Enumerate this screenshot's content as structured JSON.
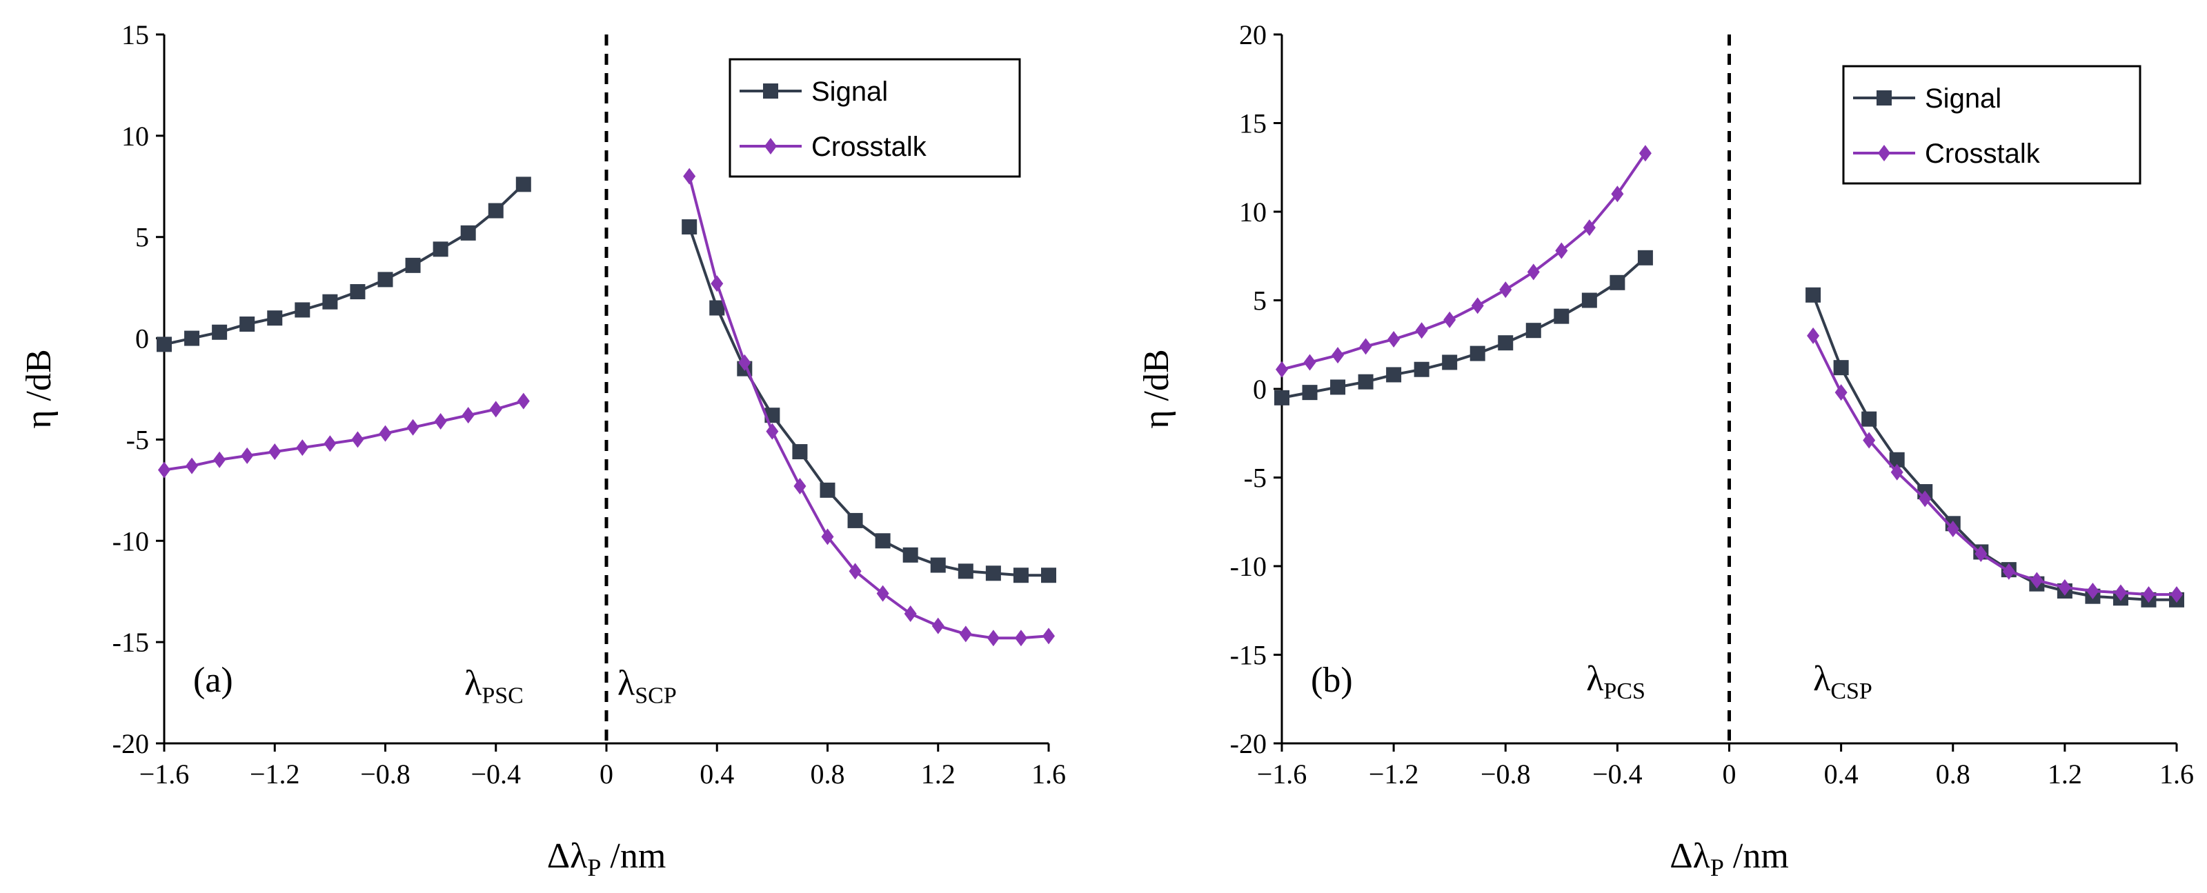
{
  "colors": {
    "signal": "#333d4d",
    "crosstalk": "#8a35b5",
    "axis": "#000000"
  },
  "chart_data": [
    {
      "type": "line",
      "panel_label": "(a)",
      "xlabel": "Δλ",
      "xlabel_sub": "P",
      "xlabel_unit": " /nm",
      "ylabel": "η /dB",
      "xlim": [
        -1.6,
        1.6
      ],
      "ylim": [
        -20,
        15
      ],
      "xticks": [
        -1.6,
        -1.2,
        -0.8,
        -0.4,
        0,
        0.4,
        0.8,
        1.2,
        1.6
      ],
      "xtick_labels": [
        "−1.6",
        "−1.2",
        "−0.8",
        "−0.4",
        "0",
        "0.4",
        "0.8",
        "1.2",
        "1.6"
      ],
      "yticks": [
        -20,
        -15,
        -10,
        -5,
        0,
        5,
        10,
        15
      ],
      "ytick_labels": [
        "-20",
        "-15",
        "-10",
        "-5",
        "0",
        "5",
        "10",
        "15"
      ],
      "divider_x": 0,
      "region_labels": [
        {
          "main": "λ",
          "sub": "PSC",
          "x": -0.3,
          "y": -17.6,
          "anchor": "end"
        },
        {
          "main": "λ",
          "sub": "SCP",
          "x": 0.04,
          "y": -17.6,
          "anchor": "start"
        }
      ],
      "legend": [
        "Signal",
        "Crosstalk"
      ],
      "series": [
        {
          "name": "Signal",
          "marker": "square",
          "segments": [
            {
              "x": [
                -1.6,
                -1.5,
                -1.4,
                -1.3,
                -1.2,
                -1.1,
                -1.0,
                -0.9,
                -0.8,
                -0.7,
                -0.6,
                -0.5,
                -0.4,
                -0.3
              ],
              "y": [
                -0.3,
                0.0,
                0.3,
                0.7,
                1.0,
                1.4,
                1.8,
                2.3,
                2.9,
                3.6,
                4.4,
                5.2,
                6.3,
                7.6
              ]
            },
            {
              "x": [
                0.3,
                0.4,
                0.5,
                0.6,
                0.7,
                0.8,
                0.9,
                1.0,
                1.1,
                1.2,
                1.3,
                1.4,
                1.5,
                1.6
              ],
              "y": [
                5.5,
                1.5,
                -1.5,
                -3.8,
                -5.6,
                -7.5,
                -9.0,
                -10.0,
                -10.7,
                -11.2,
                -11.5,
                -11.6,
                -11.7,
                -11.7
              ]
            }
          ]
        },
        {
          "name": "Crosstalk",
          "marker": "diamond",
          "segments": [
            {
              "x": [
                -1.6,
                -1.5,
                -1.4,
                -1.3,
                -1.2,
                -1.1,
                -1.0,
                -0.9,
                -0.8,
                -0.7,
                -0.6,
                -0.5,
                -0.4,
                -0.3
              ],
              "y": [
                -6.5,
                -6.3,
                -6.0,
                -5.8,
                -5.6,
                -5.4,
                -5.2,
                -5.0,
                -4.7,
                -4.4,
                -4.1,
                -3.8,
                -3.5,
                -3.1
              ]
            },
            {
              "x": [
                0.3,
                0.4,
                0.5,
                0.6,
                0.7,
                0.8,
                0.9,
                1.0,
                1.1,
                1.2,
                1.3,
                1.4,
                1.5,
                1.6
              ],
              "y": [
                8.0,
                2.7,
                -1.2,
                -4.6,
                -7.3,
                -9.8,
                -11.5,
                -12.6,
                -13.6,
                -14.2,
                -14.6,
                -14.8,
                -14.8,
                -14.7
              ]
            }
          ]
        }
      ]
    },
    {
      "type": "line",
      "panel_label": "(b)",
      "xlabel": "Δλ",
      "xlabel_sub": "P",
      "xlabel_unit": " /nm",
      "ylabel": "η /dB",
      "xlim": [
        -1.6,
        1.6
      ],
      "ylim": [
        -20,
        20
      ],
      "xticks": [
        -1.6,
        -1.2,
        -0.8,
        -0.4,
        0,
        0.4,
        0.8,
        1.2,
        1.6
      ],
      "xtick_labels": [
        "−1.6",
        "−1.2",
        "−0.8",
        "−0.4",
        "0",
        "0.4",
        "0.8",
        "1.2",
        "1.6"
      ],
      "yticks": [
        -20,
        -15,
        -10,
        -5,
        0,
        5,
        10,
        15,
        20
      ],
      "ytick_labels": [
        "-20",
        "-15",
        "-10",
        "-5",
        "0",
        "5",
        "10",
        "15",
        "20"
      ],
      "divider_x": 0,
      "region_labels": [
        {
          "main": "λ",
          "sub": "PCS",
          "x": -0.3,
          "y": -17.0,
          "anchor": "end"
        },
        {
          "main": "λ",
          "sub": "CSP",
          "x": 0.3,
          "y": -17.0,
          "anchor": "start"
        }
      ],
      "legend": [
        "Signal",
        "Crosstalk"
      ],
      "series": [
        {
          "name": "Signal",
          "marker": "square",
          "segments": [
            {
              "x": [
                -1.6,
                -1.5,
                -1.4,
                -1.3,
                -1.2,
                -1.1,
                -1.0,
                -0.9,
                -0.8,
                -0.7,
                -0.6,
                -0.5,
                -0.4,
                -0.3
              ],
              "y": [
                -0.5,
                -0.2,
                0.1,
                0.4,
                0.8,
                1.1,
                1.5,
                2.0,
                2.6,
                3.3,
                4.1,
                5.0,
                6.0,
                7.4
              ]
            },
            {
              "x": [
                0.3,
                0.4,
                0.5,
                0.6,
                0.7,
                0.8,
                0.9,
                1.0,
                1.1,
                1.2,
                1.3,
                1.4,
                1.5,
                1.6
              ],
              "y": [
                5.3,
                1.2,
                -1.7,
                -4.0,
                -5.8,
                -7.6,
                -9.2,
                -10.2,
                -11.0,
                -11.4,
                -11.7,
                -11.8,
                -11.9,
                -11.9
              ]
            }
          ]
        },
        {
          "name": "Crosstalk",
          "marker": "diamond",
          "segments": [
            {
              "x": [
                -1.6,
                -1.5,
                -1.4,
                -1.3,
                -1.2,
                -1.1,
                -1.0,
                -0.9,
                -0.8,
                -0.7,
                -0.6,
                -0.5,
                -0.4,
                -0.3
              ],
              "y": [
                1.1,
                1.5,
                1.9,
                2.4,
                2.8,
                3.3,
                3.9,
                4.7,
                5.6,
                6.6,
                7.8,
                9.1,
                11.0,
                13.3
              ]
            },
            {
              "x": [
                0.3,
                0.4,
                0.5,
                0.6,
                0.7,
                0.8,
                0.9,
                1.0,
                1.1,
                1.2,
                1.3,
                1.4,
                1.5,
                1.6
              ],
              "y": [
                3.0,
                -0.2,
                -2.9,
                -4.7,
                -6.2,
                -7.9,
                -9.3,
                -10.3,
                -10.8,
                -11.2,
                -11.4,
                -11.5,
                -11.6,
                -11.6
              ]
            }
          ]
        }
      ]
    }
  ]
}
